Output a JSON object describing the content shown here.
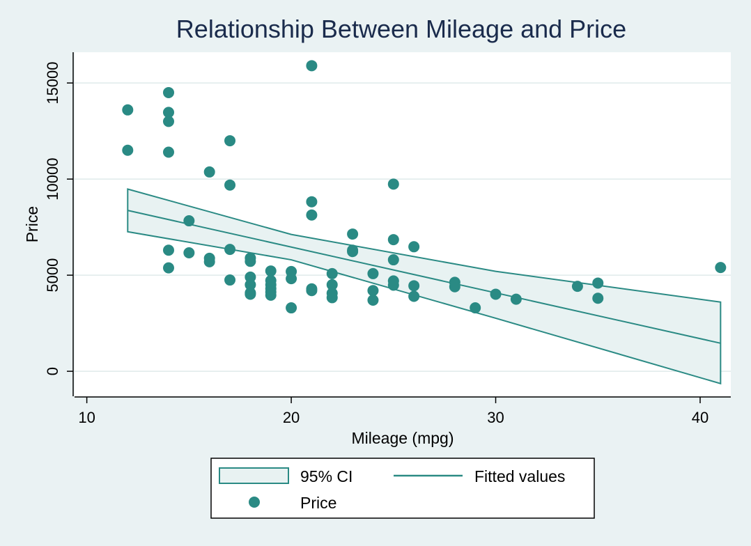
{
  "chart_data": {
    "type": "scatter",
    "title": "Relationship Between Mileage and Price",
    "xlabel": "Mileage (mpg)",
    "ylabel": "Price",
    "xlim": [
      9.4,
      41.5
    ],
    "ylim": [
      -1300,
      16600
    ],
    "xticks": [
      10,
      20,
      30,
      40
    ],
    "yticks": [
      0,
      5000,
      10000,
      15000
    ],
    "grid": "horizontal",
    "legend_position": "bottom",
    "colors": {
      "plot_background": "#ffffff",
      "figure_background": "#eaf2f3",
      "marker": "#2a8a84",
      "line": "#2a8a84",
      "ci_fill": "#e8f2f2",
      "grid": "#dfeaea",
      "title": "#1a2b4c"
    },
    "scatter": {
      "name": "Price",
      "points": [
        [
          12,
          13600
        ],
        [
          12,
          11500
        ],
        [
          14,
          14500
        ],
        [
          14,
          13470
        ],
        [
          14,
          13000
        ],
        [
          14,
          11400
        ],
        [
          14,
          6300
        ],
        [
          14,
          5380
        ],
        [
          15,
          7830
        ],
        [
          15,
          6165
        ],
        [
          16,
          10370
        ],
        [
          16,
          5880
        ],
        [
          16,
          5700
        ],
        [
          17,
          11995
        ],
        [
          17,
          9690
        ],
        [
          17,
          6340
        ],
        [
          17,
          4750
        ],
        [
          18,
          5890
        ],
        [
          18,
          5720
        ],
        [
          18,
          4900
        ],
        [
          18,
          4500
        ],
        [
          18,
          4080
        ],
        [
          18,
          4010
        ],
        [
          19,
          5220
        ],
        [
          19,
          4720
        ],
        [
          19,
          4500
        ],
        [
          19,
          4300
        ],
        [
          19,
          4120
        ],
        [
          19,
          3960
        ],
        [
          20,
          5190
        ],
        [
          20,
          4820
        ],
        [
          20,
          3300
        ],
        [
          21,
          15900
        ],
        [
          21,
          8820
        ],
        [
          21,
          8130
        ],
        [
          21,
          4290
        ],
        [
          21,
          4200
        ],
        [
          22,
          5080
        ],
        [
          22,
          4500
        ],
        [
          22,
          4060
        ],
        [
          22,
          3830
        ],
        [
          23,
          7140
        ],
        [
          23,
          6300
        ],
        [
          23,
          6230
        ],
        [
          24,
          5080
        ],
        [
          24,
          4200
        ],
        [
          24,
          3700
        ],
        [
          25,
          9740
        ],
        [
          25,
          6850
        ],
        [
          25,
          5800
        ],
        [
          25,
          4700
        ],
        [
          25,
          4480
        ],
        [
          26,
          6480
        ],
        [
          26,
          4450
        ],
        [
          26,
          3900
        ],
        [
          28,
          4630
        ],
        [
          28,
          4400
        ],
        [
          29,
          3300
        ],
        [
          30,
          4010
        ],
        [
          31,
          3750
        ],
        [
          34,
          4420
        ],
        [
          35,
          4590
        ],
        [
          35,
          3800
        ],
        [
          41,
          5400
        ]
      ]
    },
    "fitted": {
      "name": "Fitted values",
      "x": [
        12,
        41
      ],
      "y": [
        8370,
        1460
      ]
    },
    "ci": {
      "name": "95% CI",
      "x": [
        12,
        20,
        30,
        41
      ],
      "upper": [
        9480,
        7120,
        5200,
        3600
      ],
      "lower": [
        7260,
        5800,
        2760,
        -640
      ]
    },
    "legend": [
      "95% CI",
      "Fitted values",
      "Price"
    ]
  }
}
